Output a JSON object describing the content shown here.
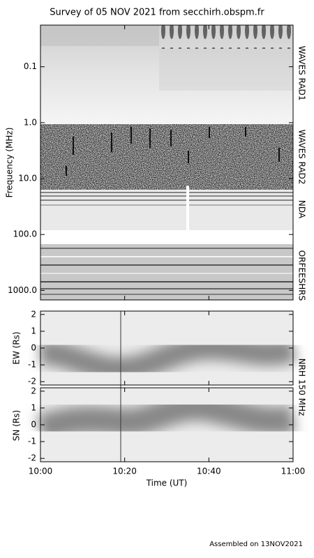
{
  "chart_data": [
    {
      "type": "spectrogram",
      "title": "Survey of 05 NOV 2021 from secchirh.obspm.fr",
      "ylabel": "Frequency (MHz)",
      "log": true,
      "inverted": true,
      "ylim": [
        0.018,
        1480
      ],
      "yticks": [
        {
          "value": 0.1,
          "label": "0.1"
        },
        {
          "value": 1,
          "label": "1.0"
        },
        {
          "value": 10,
          "label": "10.0"
        },
        {
          "value": 100,
          "label": "100.0"
        },
        {
          "value": 1000,
          "label": "1000.0"
        }
      ],
      "instruments": [
        "WAVES RAD1",
        "WAVES RAD2",
        "NDA",
        "ORFEESHRS"
      ]
    },
    {
      "type": "image",
      "ylabel": "EW (Rs)",
      "ylim": [
        -2.2,
        2.2
      ],
      "yticks": [
        2,
        1,
        0,
        -1,
        -2
      ]
    },
    {
      "type": "image",
      "ylabel": "SN (Rs)",
      "ylim": [
        -2.2,
        2.2
      ],
      "yticks": [
        2,
        1,
        0,
        -1,
        -2
      ],
      "xlabel": "Time (UT)",
      "xlim": [
        "10:00",
        "11:00"
      ],
      "xticks": [
        "10:00",
        "10:20",
        "10:40",
        "11:00"
      ]
    }
  ],
  "instrument": "NRH 150 MHz",
  "footer": "Assembled on 13NOV2021"
}
